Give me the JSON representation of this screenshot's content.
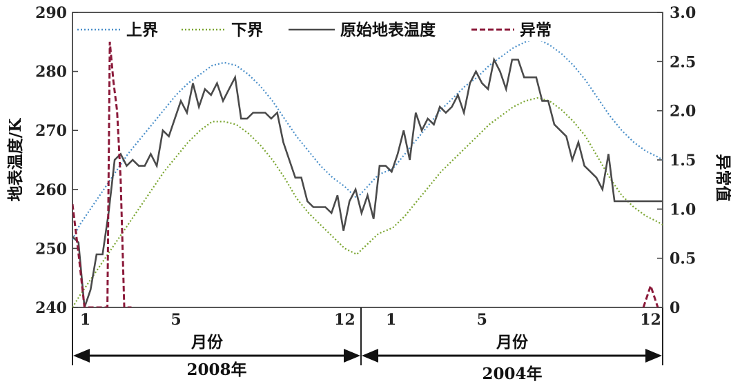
{
  "chart_data": {
    "type": "line",
    "ylabel": "地表温度/K",
    "y2label": "异常值",
    "ylim": [
      240,
      290
    ],
    "y2lim": [
      0,
      3.0
    ],
    "yticks": [
      "240",
      "250",
      "260",
      "270",
      "280",
      "290"
    ],
    "y2ticks": [
      "0",
      "0.5",
      "1.0",
      "1.5",
      "2.0",
      "2.5",
      "3.0"
    ],
    "panels": [
      {
        "xlabel": "月份",
        "year_label": "2008年",
        "ticks": [
          {
            "value": 1,
            "label": "1"
          },
          {
            "value": 5,
            "label": "5"
          },
          {
            "value": 12,
            "label": "12"
          }
        ]
      },
      {
        "xlabel": "月份",
        "year_label": "2004年",
        "ticks": [
          {
            "value": 1,
            "label": "1"
          },
          {
            "value": 5,
            "label": "5"
          },
          {
            "value": 12,
            "label": "12"
          }
        ]
      }
    ],
    "legend": {
      "placement": "top",
      "entries": [
        "上界",
        "下界",
        "原始地表温度",
        "异常"
      ]
    },
    "series": [
      {
        "name": "上界",
        "color": "#4a8fc9",
        "style": "dotted",
        "axis": "left",
        "x": [
          0.7,
          1,
          1.5,
          2,
          2.5,
          3,
          3.5,
          4,
          4.5,
          5,
          5.5,
          6,
          6.5,
          7,
          7.5,
          8,
          8.5,
          9,
          9.5,
          10,
          10.5,
          11,
          11.5,
          12,
          12.5,
          13.4,
          14,
          14.5,
          15,
          15.5,
          16,
          16.5,
          17,
          17.5,
          18,
          18.5,
          19,
          19.5,
          20,
          20.5,
          21,
          21.5,
          22,
          22.5,
          23,
          23.5,
          24,
          24.5,
          25,
          25.2
        ],
        "y": [
          251.5,
          254,
          257,
          260,
          263,
          266,
          268.5,
          271,
          273.5,
          276,
          278,
          279.5,
          281,
          281.5,
          281,
          279.5,
          277.5,
          275,
          272,
          269,
          266.5,
          264,
          262,
          260.5,
          258.5,
          262.5,
          263.5,
          266,
          268.5,
          271,
          273.5,
          275.5,
          277.5,
          279,
          281,
          282.5,
          284,
          285,
          285.5,
          284.5,
          283,
          281,
          278.5,
          275.5,
          272.5,
          270,
          268,
          266.5,
          265.5,
          265
        ]
      },
      {
        "name": "下界",
        "color": "#7aa530",
        "style": "dotted",
        "axis": "left",
        "x": [
          0.7,
          1,
          1.5,
          2,
          2.5,
          3,
          3.5,
          4,
          4.5,
          5,
          5.5,
          6,
          6.5,
          7,
          7.5,
          8,
          8.5,
          9,
          9.5,
          10,
          10.5,
          11,
          11.5,
          12,
          12.5,
          13.4,
          14,
          14.5,
          15,
          15.5,
          16,
          16.5,
          17,
          17.5,
          18,
          18.5,
          19,
          19.5,
          20,
          20.5,
          21,
          21.5,
          22,
          22.5,
          23,
          23.5,
          24,
          24.5,
          25,
          25.2
        ],
        "y": [
          240,
          242,
          245,
          248,
          251,
          254,
          257,
          260,
          263,
          265.5,
          268,
          270,
          271.5,
          271.5,
          271,
          269.5,
          267.5,
          265,
          262,
          258.5,
          256,
          254,
          252,
          250,
          249,
          252.5,
          253.5,
          255.5,
          258,
          260.5,
          263,
          265,
          267,
          269,
          271,
          272.5,
          274,
          275,
          275.5,
          275,
          273.5,
          271.5,
          269,
          265.5,
          262,
          259,
          257,
          255.5,
          254.5,
          254
        ]
      },
      {
        "name": "原始地表温度",
        "color": "#4a4a4a",
        "style": "solid",
        "axis": "left",
        "x": [
          0.7,
          0.95,
          1.2,
          1.45,
          1.7,
          1.95,
          2.2,
          2.45,
          2.7,
          2.95,
          3.2,
          3.45,
          3.7,
          3.95,
          4.2,
          4.45,
          4.7,
          4.95,
          5.2,
          5.45,
          5.7,
          5.95,
          6.2,
          6.45,
          6.7,
          6.95,
          7.2,
          7.45,
          7.7,
          7.95,
          8.2,
          8.45,
          8.7,
          8.95,
          9.2,
          9.45,
          9.7,
          9.95,
          10.2,
          10.45,
          10.7,
          10.95,
          11.2,
          11.45,
          11.7,
          11.95,
          12.2,
          12.45,
          12.7,
          12.95,
          13.2,
          13.45,
          13.7,
          13.95,
          14.2,
          14.45,
          14.7,
          14.95,
          15.2,
          15.45,
          15.7,
          15.95,
          16.2,
          16.45,
          16.7,
          16.95,
          17.2,
          17.45,
          17.7,
          17.95,
          18.2,
          18.45,
          18.7,
          18.95,
          19.2,
          19.45,
          19.7,
          19.95,
          20.2,
          20.45,
          20.7,
          20.95,
          21.2,
          21.45,
          21.7,
          21.95,
          22.2,
          22.45,
          22.7,
          22.95,
          23.2,
          23.45,
          23.7,
          23.95,
          24.2,
          24.45,
          24.7,
          24.95,
          25.2
        ],
        "y": [
          252,
          251,
          240,
          243,
          249,
          249,
          256,
          265,
          266,
          264,
          265,
          264,
          264,
          266,
          264,
          270,
          269,
          272,
          275,
          273,
          278,
          274,
          277,
          276,
          278,
          275,
          277,
          279,
          272,
          272,
          273,
          273,
          273,
          272,
          273,
          268,
          265,
          262,
          262,
          258,
          257,
          257,
          257,
          256,
          259,
          253,
          258,
          260,
          256,
          259,
          255,
          264,
          264,
          263,
          266,
          270,
          265,
          273,
          270,
          272,
          271,
          274,
          273,
          274,
          276,
          273,
          278,
          280,
          278,
          277,
          282,
          280,
          277,
          282,
          282,
          279,
          279,
          279,
          275,
          275,
          271,
          270,
          269,
          265,
          268,
          264,
          263,
          262,
          260,
          266,
          258,
          258,
          258,
          258,
          258,
          258,
          258,
          258,
          258
        ]
      },
      {
        "name": "异常",
        "color": "#8b1a3a",
        "style": "dashed",
        "axis": "right",
        "x": [
          0.7,
          0.95,
          1.2,
          1.5,
          1.75,
          2.0,
          2.15,
          2.25,
          2.4,
          2.55,
          2.7,
          2.85,
          3.0,
          3.15
        ],
        "y": [
          1.05,
          0.55,
          0,
          0,
          0,
          0,
          0,
          2.7,
          2.3,
          2.0,
          1.3,
          0,
          0,
          0
        ]
      },
      {
        "name": "异常",
        "color": "#8b1a3a",
        "style": "dashed",
        "axis": "right",
        "x": [
          24.4,
          24.7,
          25.0
        ],
        "y": [
          0,
          0.22,
          0
        ]
      }
    ]
  }
}
